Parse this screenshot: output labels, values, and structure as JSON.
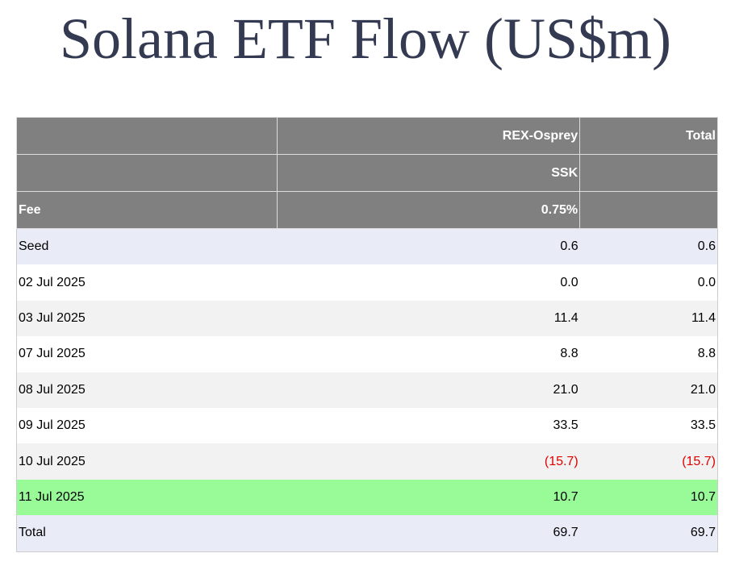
{
  "title": "Solana ETF Flow (US$m)",
  "table": {
    "header": {
      "fee_label": "Fee",
      "columns": [
        {
          "fund": "REX-Osprey",
          "ticker": "SSK",
          "fee": "0.75%"
        },
        {
          "fund": "Total"
        }
      ]
    },
    "rows": [
      {
        "label": "Seed",
        "values": [
          "0.6",
          "0.6"
        ]
      },
      {
        "label": "02 Jul 2025",
        "values": [
          "0.0",
          "0.0"
        ]
      },
      {
        "label": "03 Jul 2025",
        "values": [
          "11.4",
          "11.4"
        ]
      },
      {
        "label": "07 Jul 2025",
        "values": [
          "8.8",
          "8.8"
        ]
      },
      {
        "label": "08 Jul 2025",
        "values": [
          "21.0",
          "21.0"
        ]
      },
      {
        "label": "09 Jul 2025",
        "values": [
          "33.5",
          "33.5"
        ]
      },
      {
        "label": "10 Jul 2025",
        "values": [
          "(15.7)",
          "(15.7)"
        ]
      },
      {
        "label": "11 Jul 2025",
        "values": [
          "10.7",
          "10.7"
        ]
      },
      {
        "label": "Total",
        "values": [
          "69.7",
          "69.7"
        ]
      }
    ]
  }
}
